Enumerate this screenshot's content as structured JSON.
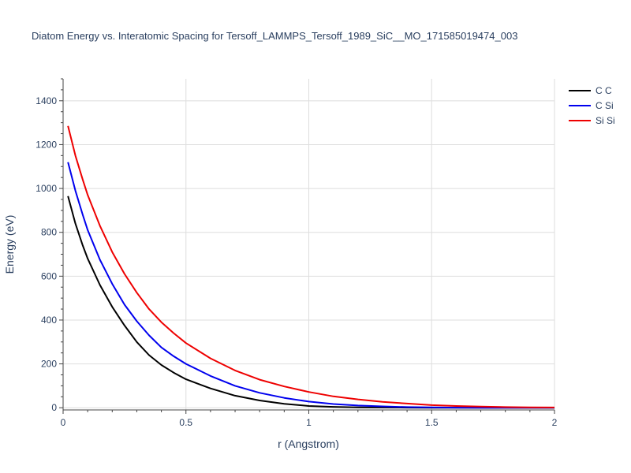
{
  "chart_data": {
    "type": "line",
    "title": "Diatom Energy vs. Interatomic Spacing for Tersoff_LAMMPS_Tersoff_1989_SiC__MO_171585019474_003",
    "xlabel": "r (Angstrom)",
    "ylabel": "Energy (eV)",
    "xlim": [
      0,
      2
    ],
    "ylim": [
      -10,
      1500
    ],
    "xticks": [
      0,
      0.5,
      1,
      1.5,
      2
    ],
    "xtick_labels": [
      "0",
      "0.5",
      "1",
      "1.5",
      "2"
    ],
    "yticks": [
      0,
      200,
      400,
      600,
      800,
      1000,
      1200,
      1400
    ],
    "ytick_labels": [
      "0",
      "200",
      "400",
      "600",
      "800",
      "1000",
      "1200",
      "1400"
    ],
    "grid": true,
    "legend_position": "top-right",
    "x": [
      0.02,
      0.05,
      0.08,
      0.1,
      0.15,
      0.2,
      0.25,
      0.3,
      0.35,
      0.4,
      0.45,
      0.5,
      0.6,
      0.7,
      0.8,
      0.9,
      1.0,
      1.1,
      1.2,
      1.3,
      1.4,
      1.5,
      1.6,
      1.7,
      1.8,
      1.9,
      2.0
    ],
    "series": [
      {
        "name": "C C",
        "color": "#000000",
        "values": [
          965,
          840,
          740,
          680,
          560,
          460,
          375,
          300,
          240,
          195,
          160,
          130,
          88,
          55,
          33,
          18,
          8,
          4,
          2,
          1,
          0.5,
          0.2,
          0,
          0,
          0,
          0,
          0
        ]
      },
      {
        "name": "C Si",
        "color": "#0000ee",
        "values": [
          1120,
          990,
          880,
          810,
          675,
          565,
          470,
          395,
          330,
          275,
          235,
          200,
          145,
          100,
          68,
          45,
          28,
          17,
          10,
          6,
          3,
          1.5,
          0.5,
          0,
          0,
          0,
          0
        ]
      },
      {
        "name": "Si Si",
        "color": "#ee0000",
        "values": [
          1285,
          1150,
          1040,
          970,
          830,
          710,
          610,
          525,
          450,
          390,
          340,
          295,
          225,
          170,
          128,
          97,
          72,
          52,
          38,
          27,
          19,
          12,
          8,
          5,
          3,
          2,
          1
        ]
      }
    ]
  }
}
